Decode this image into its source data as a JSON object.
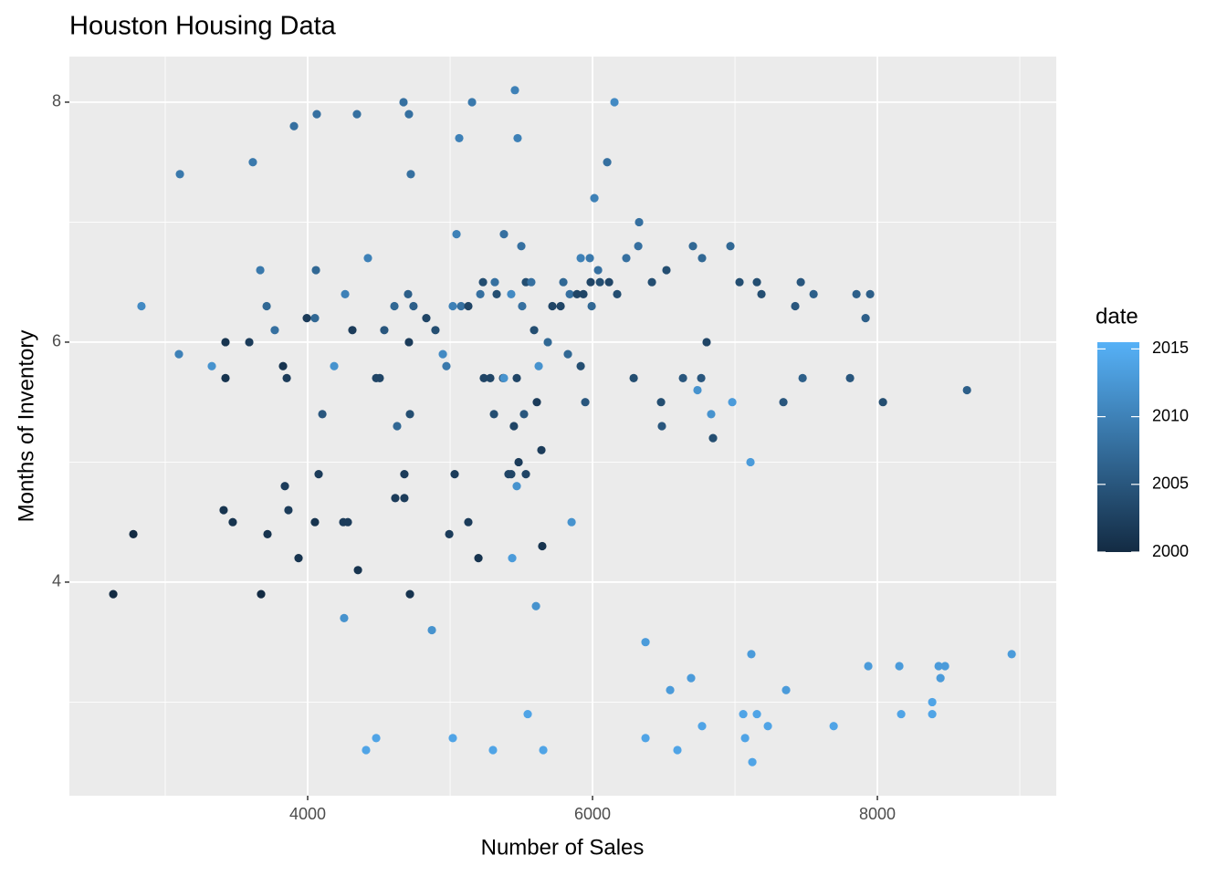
{
  "chart_data": {
    "type": "scatter",
    "title": "Houston Housing Data",
    "x_label": "Number of Sales",
    "y_label": "Months of Inventory",
    "x": [
      2635,
      2776,
      2833,
      3096,
      3103,
      3327,
      3423,
      3423,
      3410,
      3474,
      3590,
      3615,
      3667,
      3673,
      3712,
      3718,
      3769,
      3827,
      3853,
      3840,
      3865,
      3904,
      3936,
      3994,
      4051,
      4058,
      4064,
      4051,
      4077,
      4103,
      4186,
      4256,
      4263,
      4250,
      4282,
      4314,
      4346,
      4353,
      4410,
      4423,
      4481,
      4481,
      4506,
      4538,
      4609,
      4628,
      4615,
      4673,
      4679,
      4679,
      4705,
      4711,
      4711,
      4718,
      4724,
      4718,
      4743,
      4833,
      4872,
      4897,
      4949,
      4974,
      4994,
      5019,
      5019,
      5032,
      5045,
      5064,
      5077,
      5128,
      5128,
      5154,
      5199,
      5212,
      5231,
      5237,
      5282,
      5301,
      5308,
      5314,
      5327,
      5372,
      5378,
      5378,
      5410,
      5429,
      5436,
      5429,
      5448,
      5455,
      5468,
      5468,
      5474,
      5481,
      5500,
      5506,
      5519,
      5532,
      5532,
      5545,
      5570,
      5590,
      5603,
      5609,
      5622,
      5641,
      5647,
      5654,
      5686,
      5718,
      5776,
      5795,
      5827,
      5840,
      5853,
      5891,
      5917,
      5917,
      5936,
      5949,
      5981,
      5987,
      5994,
      6013,
      6039,
      6052,
      6103,
      6116,
      6154,
      6173,
      6237,
      6289,
      6321,
      6327,
      6372,
      6372,
      6417,
      6481,
      6487,
      6519,
      6545,
      6596,
      6635,
      6692,
      6705,
      6737,
      6763,
      6769,
      6769,
      6801,
      6833,
      6846,
      6968,
      6981,
      7032,
      7058,
      7071,
      7109,
      7115,
      7122,
      7154,
      7154,
      7186,
      7231,
      7340,
      7359,
      7423,
      7462,
      7475,
      7552,
      7693,
      7808,
      7853,
      7917,
      7936,
      7949,
      8039,
      8154,
      8167,
      8385,
      8385,
      8430,
      8443,
      8475,
      8629,
      8943
    ],
    "values": [
      3.9,
      4.4,
      6.3,
      5.9,
      7.4,
      5.8,
      6.0,
      5.7,
      4.6,
      4.5,
      6.0,
      7.5,
      6.6,
      3.9,
      6.3,
      4.4,
      6.1,
      5.8,
      5.7,
      4.8,
      4.6,
      7.8,
      4.2,
      6.2,
      6.2,
      6.6,
      7.9,
      4.5,
      4.9,
      5.4,
      5.8,
      3.7,
      6.4,
      4.5,
      4.5,
      6.1,
      7.9,
      4.1,
      2.6,
      6.7,
      2.7,
      5.7,
      5.7,
      6.1,
      6.3,
      5.3,
      4.7,
      8.0,
      4.7,
      4.9,
      6.4,
      7.9,
      6.0,
      5.4,
      7.4,
      3.9,
      6.3,
      6.2,
      3.6,
      6.1,
      5.9,
      5.8,
      4.4,
      2.7,
      6.3,
      4.9,
      6.9,
      7.7,
      6.3,
      6.3,
      4.5,
      8.0,
      4.2,
      6.4,
      6.5,
      5.7,
      5.7,
      2.6,
      5.4,
      6.5,
      6.4,
      5.7,
      6.9,
      5.7,
      4.9,
      4.9,
      4.2,
      6.4,
      5.3,
      8.1,
      4.8,
      5.7,
      7.7,
      5.0,
      6.8,
      6.3,
      5.4,
      4.9,
      6.5,
      2.9,
      6.5,
      6.1,
      3.8,
      5.5,
      5.8,
      5.1,
      4.3,
      2.6,
      6.0,
      6.3,
      6.3,
      6.5,
      5.9,
      6.4,
      4.5,
      6.4,
      6.7,
      5.8,
      6.4,
      5.5,
      6.7,
      6.5,
      6.3,
      7.2,
      6.6,
      6.5,
      7.5,
      6.5,
      8.0,
      6.4,
      6.7,
      5.7,
      6.8,
      7.0,
      3.5,
      2.7,
      6.5,
      5.5,
      5.3,
      6.6,
      3.1,
      2.6,
      5.7,
      3.2,
      6.8,
      5.6,
      5.7,
      2.8,
      6.7,
      6.0,
      5.4,
      5.2,
      6.8,
      5.5,
      6.5,
      2.9,
      2.7,
      5.0,
      3.4,
      2.5,
      6.5,
      2.9,
      6.4,
      2.8,
      5.5,
      3.1,
      6.3,
      6.5,
      5.7,
      6.4,
      2.8,
      5.7,
      6.4,
      6.2,
      3.3,
      6.4,
      5.5,
      3.3,
      2.9,
      3.0,
      2.9,
      3.3,
      3.2,
      3.3,
      5.6,
      3.4
    ],
    "date": [
      2000,
      2000,
      2011,
      2010,
      2009,
      2012,
      2001,
      2001,
      2001,
      2001,
      2002,
      2009,
      2009,
      2000,
      2007,
      2001,
      2008,
      2001,
      2002,
      2002,
      2002,
      2008,
      2001,
      2002,
      2007,
      2007,
      2008,
      2001,
      2002,
      2005,
      2012,
      2012,
      2010,
      2002,
      2002,
      2002,
      2008,
      2001,
      2014,
      2010,
      2014,
      2003,
      2003,
      2005,
      2007,
      2007,
      2002,
      2008,
      2002,
      2002,
      2006,
      2008,
      2002,
      2004,
      2008,
      2001,
      2006,
      2003,
      2012,
      2004,
      2011,
      2009,
      2002,
      2014,
      2010,
      2002,
      2010,
      2010,
      2008,
      2003,
      2002,
      2009,
      2001,
      2008,
      2004,
      2003,
      2003,
      2014,
      2004,
      2008,
      2004,
      2003,
      2008,
      2012,
      2003,
      2003,
      2013,
      2011,
      2003,
      2010,
      2012,
      2003,
      2010,
      2002,
      2008,
      2008,
      2005,
      2003,
      2004,
      2014,
      2008,
      2004,
      2012,
      2002,
      2012,
      2002,
      2001,
      2014,
      2007,
      2003,
      2003,
      2007,
      2007,
      2008,
      2012,
      2003,
      2010,
      2004,
      2003,
      2005,
      2009,
      2003,
      2007,
      2010,
      2008,
      2004,
      2008,
      2003,
      2011,
      2004,
      2008,
      2004,
      2008,
      2008,
      2013,
      2014,
      2004,
      2004,
      2005,
      2004,
      2013,
      2014,
      2005,
      2013,
      2007,
      2012,
      2005,
      2014,
      2007,
      2003,
      2012,
      2004,
      2007,
      2013,
      2004,
      2014,
      2014,
      2013,
      2013,
      2014,
      2004,
      2014,
      2004,
      2014,
      2005,
      2013,
      2005,
      2005,
      2006,
      2006,
      2014,
      2005,
      2006,
      2006,
      2013,
      2006,
      2004,
      2013,
      2014,
      2014,
      2014,
      2013,
      2013,
      2013,
      2006,
      2013
    ],
    "xlim": [
      2327,
      9256
    ],
    "ylim": [
      2.22,
      8.38
    ],
    "xticks": [
      4000,
      6000,
      8000
    ],
    "yticks": [
      4,
      6,
      8
    ],
    "xminor": [
      3000,
      5000,
      7000,
      9000
    ],
    "yminor": [
      3,
      5,
      7
    ],
    "grid": true,
    "color_title": "date",
    "color_lim": [
      2000,
      2015.5
    ],
    "color_ticks": [
      2000,
      2005,
      2010,
      2015
    ],
    "colors": [
      "#132B43",
      "#56B1F7"
    ]
  }
}
